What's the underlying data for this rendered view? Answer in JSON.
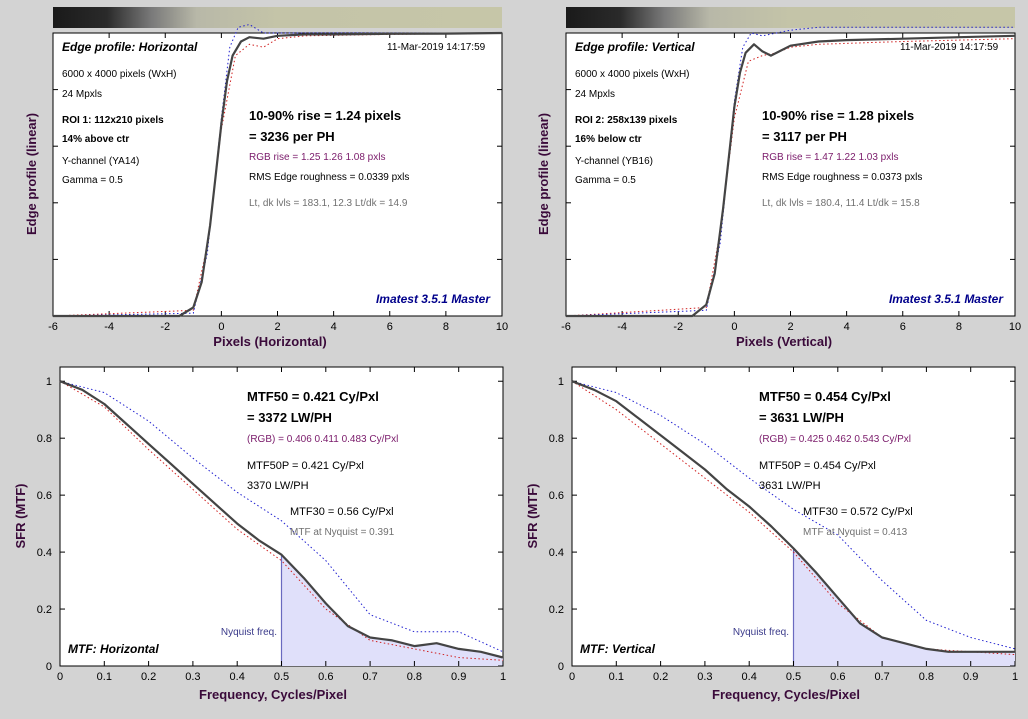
{
  "colors": {
    "background": "#d3d3d3",
    "plot_background": "#ffffff",
    "main_curve": "#444444",
    "red_channel": "#d02020",
    "blue_channel": "#2020d0",
    "nyquist_fill": "#e0e0fa",
    "brand_text": "#00008b",
    "axis_label": "#3a0a3a",
    "rgb_text": "#7a1a6a"
  },
  "chart_data": [
    {
      "type": "line",
      "panel": "edge-profile-horizontal",
      "title": "Edge profile: Horizontal",
      "timestamp": "11-Mar-2019 14:17:59",
      "info_lines": [
        "6000 x 4000 pixels (WxH)",
        "24 Mpxls"
      ],
      "roi_lines": [
        "ROI 1:  112x210 pixels",
        "14% above ctr"
      ],
      "channel_lines": [
        "Y-channel  (YA14)",
        "Gamma = 0.5"
      ],
      "rise_lines": [
        "10-90% rise = 1.24 pixels",
        "= 3236 per PH"
      ],
      "rgb_line": "RGB rise = 1.25  1.26  1.08 pxls",
      "rms_line": "RMS Edge roughness = 0.0339 pxls",
      "levels_line": "Lt, dk lvls = 183.1, 12.3   Lt/dk = 14.9",
      "brand": "Imatest 3.5.1 Master",
      "xlabel": "Pixels (Horizontal)",
      "ylabel": "Edge profile (linear)",
      "xlim": [
        -6,
        10
      ],
      "ylim": [
        0,
        1
      ],
      "x_ticks": [
        -6,
        -4,
        -2,
        0,
        2,
        4,
        6,
        8,
        10
      ],
      "x_tick_labels": [
        "-6",
        "-4",
        "-2",
        "0",
        "2",
        "4",
        "6",
        "8",
        "10"
      ],
      "grayscale_strip": true,
      "series": [
        {
          "x": [
            -6,
            -1.5,
            -1.0,
            -0.7,
            -0.4,
            -0.2,
            0,
            0.2,
            0.4,
            0.7,
            1.0,
            1.5,
            2,
            3,
            4,
            6,
            8,
            10
          ],
          "y": [
            0.0,
            0.0,
            0.03,
            0.12,
            0.32,
            0.5,
            0.68,
            0.83,
            0.92,
            0.97,
            0.985,
            0.98,
            0.99,
            0.995,
            0.995,
            0.997,
            0.998,
            1.0
          ]
        },
        {
          "name": "R",
          "x": [
            -6,
            -1.0,
            -0.5,
            0,
            0.5,
            1.0,
            1.5,
            2,
            3,
            6,
            10
          ],
          "y": [
            0.0,
            0.02,
            0.25,
            0.66,
            0.92,
            0.96,
            0.95,
            0.98,
            0.99,
            0.995,
            1.0
          ]
        },
        {
          "name": "B",
          "x": [
            -6,
            -1.0,
            -0.5,
            0,
            0.3,
            0.6,
            1.0,
            1.5,
            2,
            3,
            6,
            10
          ],
          "y": [
            0.0,
            0.01,
            0.22,
            0.7,
            0.95,
            1.02,
            1.03,
            1.0,
            1.0,
            1.0,
            1.0,
            1.0
          ]
        }
      ]
    },
    {
      "type": "line",
      "panel": "edge-profile-vertical",
      "title": "Edge profile: Vertical",
      "timestamp": "11-Mar-2019 14:17:59",
      "info_lines": [
        "6000 x 4000 pixels (WxH)",
        "24 Mpxls"
      ],
      "roi_lines": [
        "ROI 2:  258x139 pixels",
        "16% below ctr"
      ],
      "channel_lines": [
        "Y-channel  (YB16)",
        "Gamma = 0.5"
      ],
      "rise_lines": [
        "10-90% rise = 1.28 pixels",
        "= 3117 per PH"
      ],
      "rgb_line": "RGB rise = 1.47  1.22  1.03 pxls",
      "rms_line": "RMS Edge roughness = 0.0373 pxls",
      "levels_line": "Lt, dk lvls = 180.4, 11.4   Lt/dk = 15.8",
      "brand": "Imatest 3.5.1 Master",
      "xlabel": "Pixels (Vertical)",
      "ylabel": "Edge profile (linear)",
      "xlim": [
        -6,
        10
      ],
      "ylim": [
        0,
        1
      ],
      "x_ticks": [
        -6,
        -4,
        -2,
        0,
        2,
        4,
        6,
        8,
        10
      ],
      "x_tick_labels": [
        "-6",
        "-4",
        "-2",
        "0",
        "2",
        "4",
        "6",
        "8",
        "10"
      ],
      "grayscale_strip": true,
      "series": [
        {
          "x": [
            -6,
            -1.5,
            -1.0,
            -0.7,
            -0.4,
            -0.2,
            0,
            0.2,
            0.4,
            0.7,
            1.0,
            1.3,
            1.6,
            2,
            3,
            4,
            6,
            8,
            10
          ],
          "y": [
            0.0,
            0.0,
            0.04,
            0.15,
            0.38,
            0.56,
            0.74,
            0.86,
            0.93,
            0.96,
            0.935,
            0.92,
            0.935,
            0.955,
            0.97,
            0.975,
            0.98,
            0.985,
            0.99
          ]
        },
        {
          "name": "R",
          "x": [
            -6,
            -1.0,
            -0.5,
            0,
            0.5,
            1.0,
            1.5,
            2,
            3,
            6,
            10
          ],
          "y": [
            0.0,
            0.03,
            0.3,
            0.7,
            0.9,
            0.92,
            0.93,
            0.95,
            0.96,
            0.97,
            0.98
          ]
        },
        {
          "name": "B",
          "x": [
            -6,
            -1.0,
            -0.5,
            0,
            0.3,
            0.6,
            1.0,
            1.5,
            2,
            3,
            6,
            10
          ],
          "y": [
            0.0,
            0.02,
            0.26,
            0.76,
            0.95,
            1.0,
            0.99,
            1.0,
            1.01,
            1.02,
            1.02,
            1.02
          ]
        }
      ]
    },
    {
      "type": "line",
      "panel": "mtf-horizontal",
      "title": "MTF: Horizontal",
      "mtf50_lines": [
        "MTF50 = 0.421 Cy/Pxl",
        "= 3372 LW/PH"
      ],
      "rgb_line": "(RGB) = 0.406  0.411  0.483 Cy/Pxl",
      "mtf50p_lines": [
        "MTF50P = 0.421 Cy/Pxl",
        "3370 LW/PH"
      ],
      "mtf30_line": "MTF30 = 0.56 Cy/Pxl",
      "nyquist_line": "MTF at Nyquist = 0.391",
      "nyquist_label": "Nyquist freq.",
      "nyquist_x": 0.5,
      "xlabel": "Frequency, Cycles/Pixel",
      "ylabel": "SFR (MTF)",
      "xlim": [
        0,
        1
      ],
      "ylim": [
        0,
        1.05
      ],
      "x_ticks": [
        0,
        0.1,
        0.2,
        0.3,
        0.4,
        0.5,
        0.6,
        0.7,
        0.8,
        0.9,
        1
      ],
      "x_tick_labels": [
        "0",
        "0.1",
        "0.2",
        "0.3",
        "0.4",
        "0.5",
        "0.6",
        "0.7",
        "0.8",
        "0.9",
        "1"
      ],
      "y_ticks": [
        0,
        0.2,
        0.4,
        0.6,
        0.8,
        1
      ],
      "y_tick_labels": [
        "0",
        "0.2",
        "0.4",
        "0.6",
        "0.8",
        "1"
      ],
      "series": [
        {
          "x": [
            0,
            0.05,
            0.1,
            0.15,
            0.2,
            0.25,
            0.3,
            0.35,
            0.4,
            0.45,
            0.5,
            0.55,
            0.6,
            0.65,
            0.7,
            0.75,
            0.8,
            0.85,
            0.9,
            0.95,
            1.0
          ],
          "y": [
            1.0,
            0.97,
            0.92,
            0.85,
            0.78,
            0.71,
            0.64,
            0.57,
            0.5,
            0.44,
            0.391,
            0.31,
            0.22,
            0.14,
            0.1,
            0.09,
            0.07,
            0.08,
            0.06,
            0.05,
            0.03
          ]
        },
        {
          "name": "R",
          "x": [
            0,
            0.1,
            0.2,
            0.3,
            0.4,
            0.5,
            0.6,
            0.7,
            0.8,
            0.9,
            1.0
          ],
          "y": [
            1.0,
            0.91,
            0.76,
            0.62,
            0.48,
            0.37,
            0.2,
            0.09,
            0.06,
            0.03,
            0.02
          ]
        },
        {
          "name": "B",
          "x": [
            0,
            0.1,
            0.2,
            0.3,
            0.4,
            0.5,
            0.6,
            0.7,
            0.8,
            0.9,
            1.0
          ],
          "y": [
            1.0,
            0.96,
            0.86,
            0.73,
            0.61,
            0.51,
            0.37,
            0.18,
            0.12,
            0.12,
            0.05
          ]
        }
      ]
    },
    {
      "type": "line",
      "panel": "mtf-vertical",
      "title": "MTF: Vertical",
      "mtf50_lines": [
        "MTF50 = 0.454 Cy/Pxl",
        "= 3631 LW/PH"
      ],
      "rgb_line": "(RGB) = 0.425  0.462  0.543 Cy/Pxl",
      "mtf50p_lines": [
        "MTF50P = 0.454 Cy/Pxl",
        "3631 LW/PH"
      ],
      "mtf30_line": "MTF30 = 0.572 Cy/Pxl",
      "nyquist_line": "MTF at Nyquist = 0.413",
      "nyquist_label": "Nyquist freq.",
      "nyquist_x": 0.5,
      "xlabel": "Frequency, Cycles/Pixel",
      "ylabel": "SFR (MTF)",
      "xlim": [
        0,
        1
      ],
      "ylim": [
        0,
        1.05
      ],
      "x_ticks": [
        0,
        0.1,
        0.2,
        0.3,
        0.4,
        0.5,
        0.6,
        0.7,
        0.8,
        0.9,
        1
      ],
      "x_tick_labels": [
        "0",
        "0.1",
        "0.2",
        "0.3",
        "0.4",
        "0.5",
        "0.6",
        "0.7",
        "0.8",
        "0.9",
        "1"
      ],
      "y_ticks": [
        0,
        0.2,
        0.4,
        0.6,
        0.8,
        1
      ],
      "y_tick_labels": [
        "0",
        "0.2",
        "0.4",
        "0.6",
        "0.8",
        "1"
      ],
      "series": [
        {
          "x": [
            0,
            0.05,
            0.1,
            0.15,
            0.2,
            0.25,
            0.3,
            0.35,
            0.4,
            0.45,
            0.5,
            0.55,
            0.6,
            0.65,
            0.7,
            0.75,
            0.8,
            0.85,
            0.9,
            0.95,
            1.0
          ],
          "y": [
            1.0,
            0.97,
            0.93,
            0.87,
            0.81,
            0.75,
            0.69,
            0.62,
            0.56,
            0.49,
            0.413,
            0.33,
            0.24,
            0.15,
            0.1,
            0.08,
            0.06,
            0.05,
            0.05,
            0.05,
            0.05
          ]
        },
        {
          "name": "R",
          "x": [
            0,
            0.1,
            0.2,
            0.3,
            0.4,
            0.5,
            0.6,
            0.7,
            0.8,
            0.9,
            1.0
          ],
          "y": [
            1.0,
            0.9,
            0.78,
            0.66,
            0.54,
            0.4,
            0.22,
            0.1,
            0.06,
            0.05,
            0.04
          ]
        },
        {
          "name": "B",
          "x": [
            0,
            0.1,
            0.2,
            0.3,
            0.4,
            0.5,
            0.6,
            0.7,
            0.8,
            0.9,
            1.0
          ],
          "y": [
            1.0,
            0.96,
            0.88,
            0.78,
            0.66,
            0.55,
            0.46,
            0.3,
            0.16,
            0.1,
            0.06
          ]
        }
      ]
    }
  ]
}
